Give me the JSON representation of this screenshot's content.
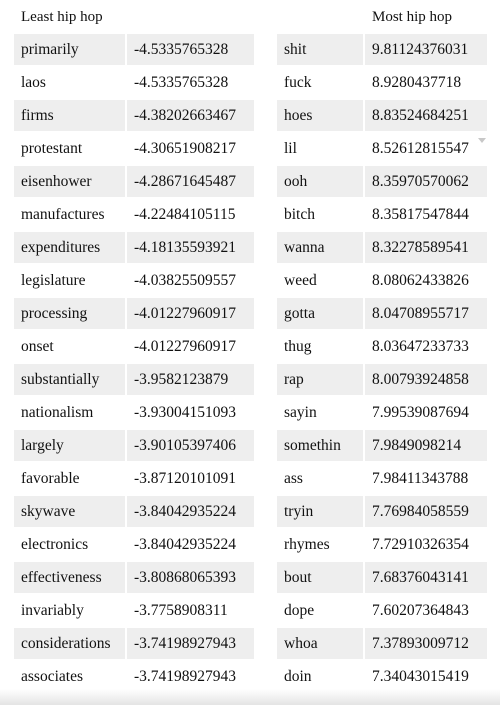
{
  "headers": {
    "left": "Least hip hop",
    "right": "Most hip hop"
  },
  "least": [
    {
      "word": "primarily",
      "value": "-4.5335765328"
    },
    {
      "word": "laos",
      "value": "-4.5335765328"
    },
    {
      "word": "firms",
      "value": "-4.38202663467"
    },
    {
      "word": "protestant",
      "value": "-4.30651908217"
    },
    {
      "word": "eisenhower",
      "value": "-4.28671645487"
    },
    {
      "word": "manufactures",
      "value": "-4.22484105115"
    },
    {
      "word": "expenditures",
      "value": "-4.18135593921"
    },
    {
      "word": "legislature",
      "value": "-4.03825509557"
    },
    {
      "word": "processing",
      "value": "-4.01227960917"
    },
    {
      "word": "onset",
      "value": "-4.01227960917"
    },
    {
      "word": "substantially",
      "value": "-3.9582123879"
    },
    {
      "word": "nationalism",
      "value": "-3.93004151093"
    },
    {
      "word": "largely",
      "value": "-3.90105397406"
    },
    {
      "word": "favorable",
      "value": "-3.87120101091"
    },
    {
      "word": "skywave",
      "value": "-3.84042935224"
    },
    {
      "word": "electronics",
      "value": "-3.84042935224"
    },
    {
      "word": "effectiveness",
      "value": "-3.80868065393"
    },
    {
      "word": "invariably",
      "value": "-3.7758908311"
    },
    {
      "word": "considerations",
      "value": "-3.74198927943"
    },
    {
      "word": "associates",
      "value": "-3.74198927943"
    }
  ],
  "most": [
    {
      "word": "shit",
      "value": "9.81124376031"
    },
    {
      "word": "fuck",
      "value": "8.9280437718"
    },
    {
      "word": "hoes",
      "value": "8.83524684251"
    },
    {
      "word": "lil",
      "value": "8.52612815547"
    },
    {
      "word": "ooh",
      "value": "8.35970570062"
    },
    {
      "word": "bitch",
      "value": "8.35817547844"
    },
    {
      "word": "wanna",
      "value": "8.32278589541"
    },
    {
      "word": "weed",
      "value": "8.08062433826"
    },
    {
      "word": "gotta",
      "value": "8.04708955717"
    },
    {
      "word": "thug",
      "value": "8.03647233733"
    },
    {
      "word": "rap",
      "value": "8.00793924858"
    },
    {
      "word": "sayin",
      "value": "7.99539087694"
    },
    {
      "word": "somethin",
      "value": "7.9849098214"
    },
    {
      "word": "ass",
      "value": "7.98411343788"
    },
    {
      "word": "tryin",
      "value": "7.76984058559"
    },
    {
      "word": "rhymes",
      "value": "7.72910326354"
    },
    {
      "word": "bout",
      "value": "7.68376043141"
    },
    {
      "word": "dope",
      "value": "7.60207364843"
    },
    {
      "word": "whoa",
      "value": "7.37893009712"
    },
    {
      "word": "doin",
      "value": "7.34043015419"
    }
  ]
}
